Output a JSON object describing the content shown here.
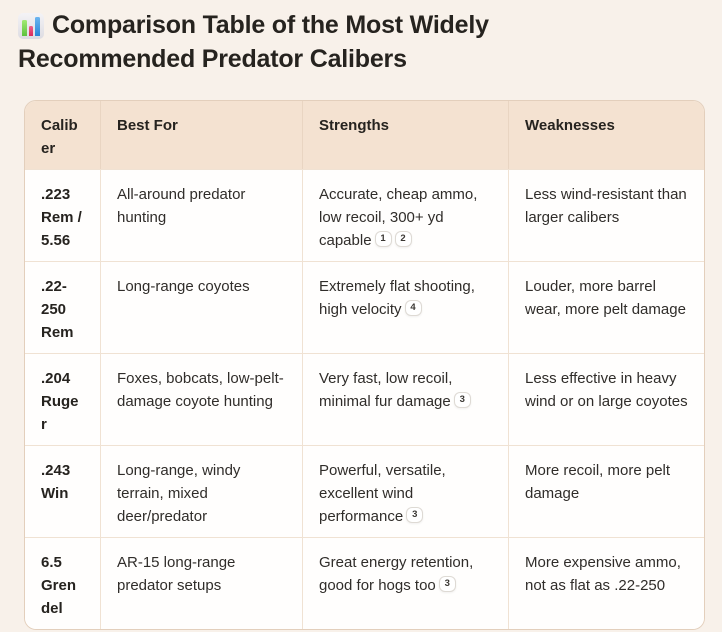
{
  "page": {
    "title": "Comparison Table of the Most Widely Recommended Predator Calibers",
    "title_icon": "bar-chart-icon",
    "colors": {
      "page_background": "#f8f1ea",
      "header_background": "#f4e2d1",
      "cell_background": "#fffefd",
      "border": "#e3cfbc",
      "text": "#26231f",
      "emoji_green": "#5dc23e",
      "emoji_pink": "#d92a5c",
      "emoji_blue": "#2a86d8"
    }
  },
  "table": {
    "columns": [
      "Caliber",
      "Best For",
      "Strengths",
      "Weaknesses"
    ],
    "rows": [
      {
        "caliber": ".223 Rem / 5.56",
        "best_for": "All-around predator hunting",
        "strengths": "Accurate, cheap ammo, low recoil, 300+ yd capable",
        "strengths_citations": [
          "1",
          "2"
        ],
        "weaknesses": "Less wind-resistant than larger calibers"
      },
      {
        "caliber": ".22-250 Rem",
        "best_for": "Long-range coyotes",
        "strengths": "Extremely flat shooting, high velocity",
        "strengths_citations": [
          "4"
        ],
        "weaknesses": "Louder, more barrel wear, more pelt damage"
      },
      {
        "caliber": ".204 Ruger",
        "best_for": "Foxes, bobcats, low-pelt-damage coyote hunting",
        "strengths": "Very fast, low recoil, minimal fur damage",
        "strengths_citations": [
          "3"
        ],
        "weaknesses": "Less effective in heavy wind or on large coyotes"
      },
      {
        "caliber": ".243 Win",
        "best_for": "Long-range, windy terrain, mixed deer/predator",
        "strengths": "Powerful, versatile, excellent wind performance",
        "strengths_citations": [
          "3"
        ],
        "weaknesses": "More recoil, more pelt damage"
      },
      {
        "caliber": "6.5 Grendel",
        "best_for": "AR-15 long-range predator setups",
        "strengths": "Great energy retention, good for hogs too",
        "strengths_citations": [
          "3"
        ],
        "weaknesses": "More expensive ammo, not as flat as .22-250"
      }
    ]
  }
}
